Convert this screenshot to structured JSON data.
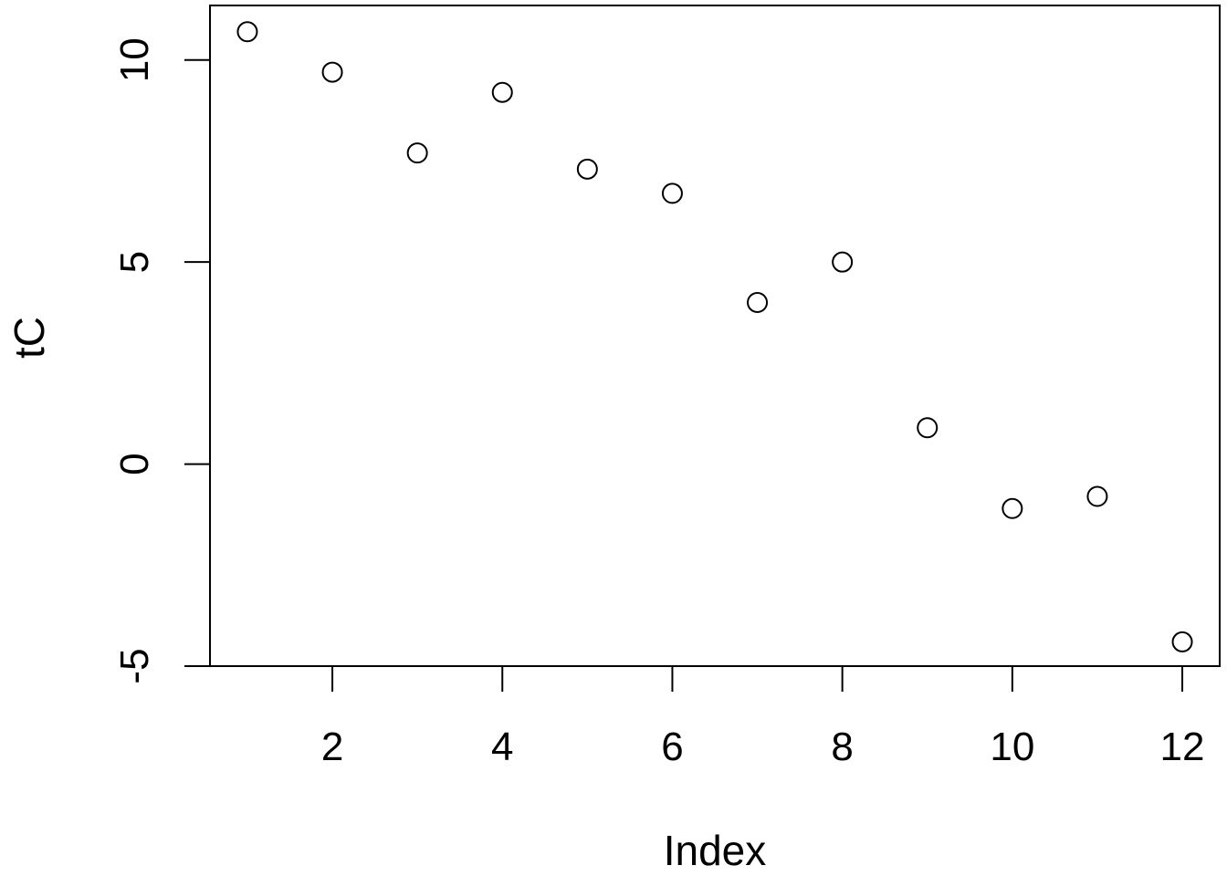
{
  "chart_data": {
    "type": "scatter",
    "title": "",
    "xlabel": "Index",
    "ylabel": "tC",
    "xlim": [
      0.56,
      12.44
    ],
    "ylim": [
      -5,
      11.35
    ],
    "x_ticks": [
      2,
      4,
      6,
      8,
      10,
      12
    ],
    "y_ticks": [
      -5,
      0,
      5,
      10
    ],
    "x_tick_labels": [
      "2",
      "4",
      "6",
      "8",
      "10",
      "12"
    ],
    "y_tick_labels": [
      "-5",
      "0",
      "5",
      "10"
    ],
    "grid": false,
    "legend": "none",
    "marker": "open-circle",
    "colors": {
      "stroke": "#000000",
      "background": "#ffffff"
    },
    "x": [
      1,
      2,
      3,
      4,
      5,
      6,
      7,
      8,
      9,
      10,
      11,
      12
    ],
    "y": [
      10.7,
      9.7,
      7.7,
      9.2,
      7.3,
      6.7,
      4.0,
      5.0,
      0.9,
      -1.1,
      -0.8,
      -4.4
    ]
  }
}
